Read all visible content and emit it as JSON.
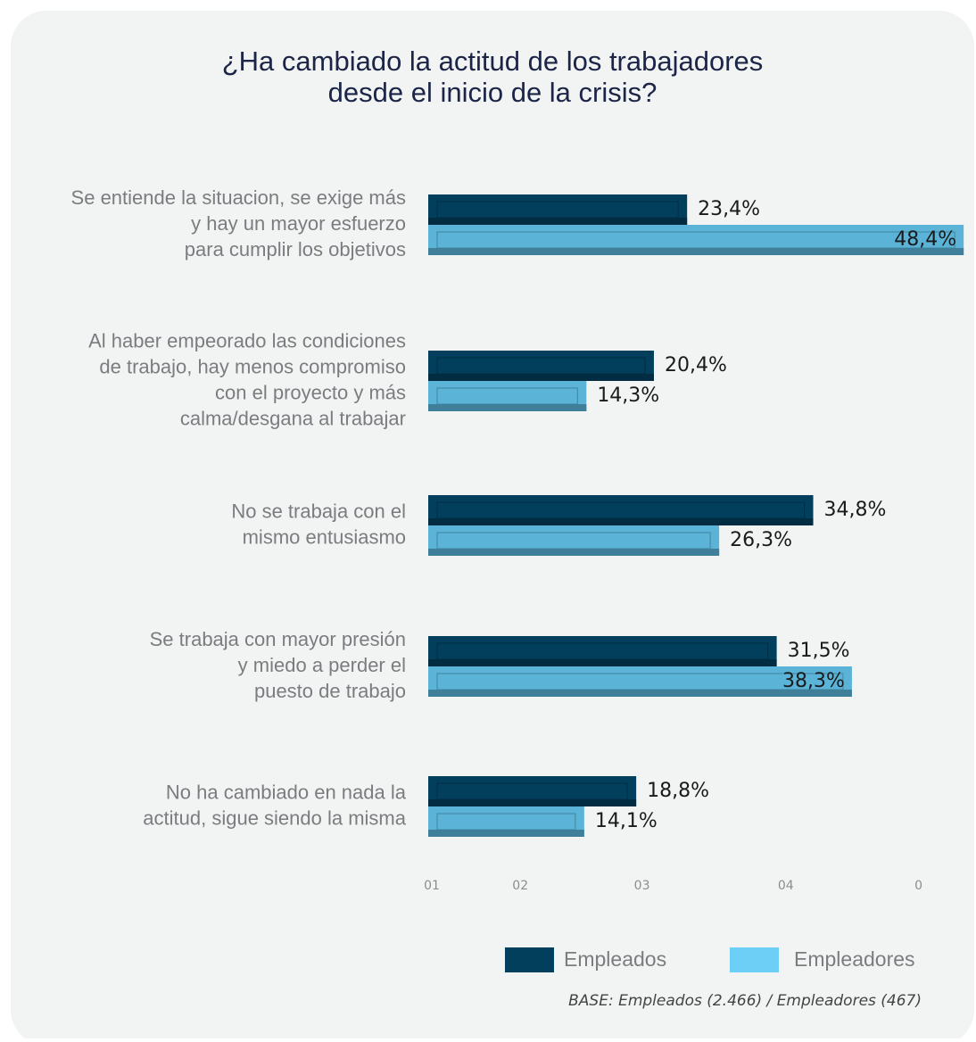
{
  "chart_data": {
    "type": "bar",
    "orientation": "horizontal",
    "title": [
      "¿Ha cambiado la actitud de los trabajadores",
      "desde el inicio de la crisis?"
    ],
    "categories": [
      [
        "Se entiende la situacion, se exige más",
        "y hay un mayor esfuerzo",
        "para cumplir los objetivos"
      ],
      [
        "Al haber empeorado las condiciones",
        "de trabajo, hay menos compromiso",
        "con el proyecto y más",
        "calma/desgana al trabajar"
      ],
      [
        "No se trabaja con el",
        "mismo entusiasmo"
      ],
      [
        "Se trabaja con mayor presión",
        "y miedo a perder el",
        "puesto de trabajo"
      ],
      [
        "No ha cambiado en nada la",
        "actitud, sigue siendo la misma"
      ]
    ],
    "series": [
      {
        "name": "Empleados",
        "color": "#023f5c",
        "values": [
          23.4,
          20.4,
          34.8,
          31.5,
          18.8
        ],
        "value_labels": [
          "23,4%",
          "20,4%",
          "34,8%",
          "31,5%",
          "18,8%"
        ]
      },
      {
        "name": "Empleadores",
        "color": "#5cb3d8",
        "legend_color": "#6dcff6",
        "values": [
          48.4,
          14.3,
          26.3,
          38.3,
          14.1
        ],
        "value_labels": [
          "48,4%",
          "14,3%",
          "26,3%",
          "38,3%",
          "14,1%"
        ]
      }
    ],
    "xlim": [
      0,
      50
    ],
    "xticks": [
      {
        "value": 0,
        "label": "01"
      },
      {
        "value": 8,
        "label": "02"
      },
      {
        "value": 19,
        "label": "03"
      },
      {
        "value": 32,
        "label": "04"
      },
      {
        "value": 44,
        "label": "0"
      }
    ],
    "grid": false,
    "legend": "bottom-right",
    "note": "BASE: Empleados (2.466) / Empleadores (467)"
  }
}
